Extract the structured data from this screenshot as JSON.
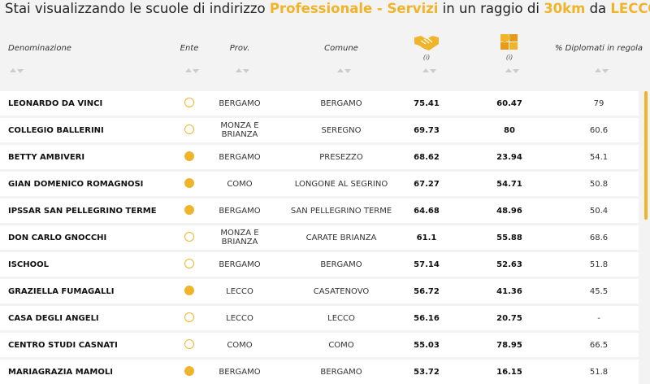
{
  "header": {
    "title": {
      "prefix": "Stai visualizzando le scuole di indirizzo",
      "indirizzo": "Professionale - Servizi",
      "middle": "in un raggio di",
      "radius": "30km",
      "connector": "da",
      "city": "LECCO"
    }
  },
  "table": {
    "columns": [
      {
        "label": "Denominazione"
      },
      {
        "label": "Ente"
      },
      {
        "label": "Prov."
      },
      {
        "label": "Comune"
      },
      {
        "icon": "handshake",
        "note": "(i)"
      },
      {
        "icon": "puzzle",
        "note": "(i)"
      },
      {
        "label": "% Diplomati in regola"
      }
    ],
    "rows": [
      {
        "name": "LEONARDO DA VINCI",
        "ente_filled": false,
        "prov": "BERGAMO",
        "comune": "BERGAMO",
        "score1": "75.41",
        "score2": "60.47",
        "diplomati": "79"
      },
      {
        "name": "COLLEGIO BALLERINI",
        "ente_filled": false,
        "prov": "MONZA E BRIANZA",
        "comune": "SEREGNO",
        "score1": "69.73",
        "score2": "80",
        "diplomati": "60.6"
      },
      {
        "name": "BETTY AMBIVERI",
        "ente_filled": true,
        "prov": "BERGAMO",
        "comune": "PRESEZZO",
        "score1": "68.62",
        "score2": "23.94",
        "diplomati": "54.1"
      },
      {
        "name": "GIAN DOMENICO ROMAGNOSI",
        "ente_filled": true,
        "prov": "COMO",
        "comune": "LONGONE AL SEGRINO",
        "score1": "67.27",
        "score2": "54.71",
        "diplomati": "50.8"
      },
      {
        "name": "IPSSAR SAN PELLEGRINO TERME",
        "ente_filled": true,
        "prov": "BERGAMO",
        "comune": "SAN PELLEGRINO TERME",
        "score1": "64.68",
        "score2": "48.96",
        "diplomati": "50.4"
      },
      {
        "name": "DON CARLO GNOCCHI",
        "ente_filled": false,
        "prov": "MONZA E BRIANZA",
        "comune": "CARATE BRIANZA",
        "score1": "61.1",
        "score2": "55.88",
        "diplomati": "68.6"
      },
      {
        "name": "ISCHOOL",
        "ente_filled": false,
        "prov": "BERGAMO",
        "comune": "BERGAMO",
        "score1": "57.14",
        "score2": "52.63",
        "diplomati": "51.8"
      },
      {
        "name": "GRAZIELLA FUMAGALLI",
        "ente_filled": true,
        "prov": "LECCO",
        "comune": "CASATENOVO",
        "score1": "56.72",
        "score2": "41.36",
        "diplomati": "45.5"
      },
      {
        "name": "CASA DEGLI ANGELI",
        "ente_filled": false,
        "prov": "LECCO",
        "comune": "LECCO",
        "score1": "56.16",
        "score2": "20.75",
        "diplomati": "-"
      },
      {
        "name": "CENTRO STUDI CASNATI",
        "ente_filled": false,
        "prov": "COMO",
        "comune": "COMO",
        "score1": "55.03",
        "score2": "78.95",
        "diplomati": "66.5"
      },
      {
        "name": "MARIAGRAZIA MAMOLI",
        "ente_filled": true,
        "prov": "BERGAMO",
        "comune": "BERGAMO",
        "score1": "53.72",
        "score2": "16.15",
        "diplomati": "51.8"
      }
    ]
  }
}
